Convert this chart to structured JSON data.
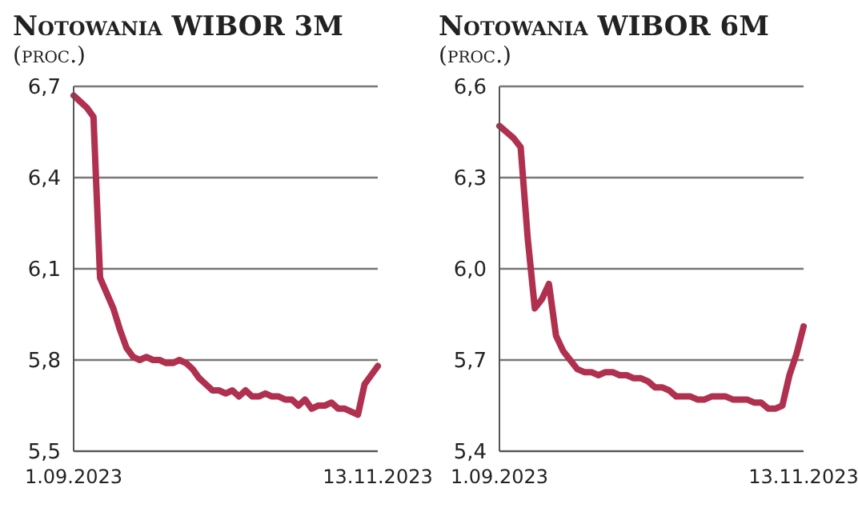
{
  "chart_data": [
    {
      "type": "line",
      "title": "Notowania WIBOR 3M",
      "subtitle": "(proc.)",
      "categories": [
        "1.09.2023",
        null,
        null,
        null,
        null,
        null,
        null,
        null,
        null,
        null,
        null,
        null,
        null,
        null,
        null,
        null,
        null,
        null,
        null,
        null,
        null,
        null,
        null,
        null,
        null,
        null,
        null,
        null,
        null,
        null,
        null,
        null,
        null,
        null,
        null,
        null,
        null,
        null,
        null,
        null,
        null,
        null,
        null,
        null,
        null,
        null,
        "13.11.2023"
      ],
      "series": [
        {
          "color": "#b0304f",
          "values": [
            6.67,
            6.65,
            6.63,
            6.6,
            6.07,
            6.02,
            5.97,
            5.9,
            5.84,
            5.81,
            5.8,
            5.81,
            5.8,
            5.8,
            5.79,
            5.79,
            5.8,
            5.79,
            5.77,
            5.74,
            5.72,
            5.7,
            5.7,
            5.69,
            5.7,
            5.68,
            5.7,
            5.68,
            5.68,
            5.69,
            5.68,
            5.68,
            5.67,
            5.67,
            5.65,
            5.67,
            5.64,
            5.65,
            5.65,
            5.66,
            5.64,
            5.64,
            5.63,
            5.62,
            5.72,
            5.75,
            5.78
          ]
        }
      ],
      "ylim": [
        5.5,
        6.7
      ],
      "yticks": [
        {
          "value": 5.5,
          "label": "5,5"
        },
        {
          "value": 5.8,
          "label": "5,8"
        },
        {
          "value": 6.1,
          "label": "6,1"
        },
        {
          "value": 6.4,
          "label": "6,4"
        },
        {
          "value": 6.7,
          "label": "6,7"
        }
      ],
      "grid": "y",
      "marker": "none",
      "line_style": "solid",
      "legend": false
    },
    {
      "type": "line",
      "title": "Notowania WIBOR 6M",
      "subtitle": "(proc.)",
      "categories": [
        "1.09.2023",
        null,
        null,
        null,
        null,
        null,
        null,
        null,
        null,
        null,
        null,
        null,
        null,
        null,
        null,
        null,
        null,
        null,
        null,
        null,
        null,
        null,
        null,
        null,
        null,
        null,
        null,
        null,
        null,
        null,
        null,
        null,
        null,
        null,
        null,
        null,
        null,
        null,
        null,
        null,
        null,
        null,
        null,
        "13.11.2023"
      ],
      "series": [
        {
          "color": "#b0304f",
          "values": [
            6.47,
            6.45,
            6.43,
            6.4,
            6.1,
            5.87,
            5.9,
            5.95,
            5.78,
            5.73,
            5.7,
            5.67,
            5.66,
            5.66,
            5.65,
            5.66,
            5.66,
            5.65,
            5.65,
            5.64,
            5.64,
            5.63,
            5.61,
            5.61,
            5.6,
            5.58,
            5.58,
            5.58,
            5.57,
            5.57,
            5.58,
            5.58,
            5.58,
            5.57,
            5.57,
            5.57,
            5.56,
            5.56,
            5.54,
            5.54,
            5.55,
            5.65,
            5.72,
            5.81
          ]
        }
      ],
      "ylim": [
        5.4,
        6.6
      ],
      "yticks": [
        {
          "value": 5.4,
          "label": "5,4"
        },
        {
          "value": 5.7,
          "label": "5,7"
        },
        {
          "value": 6.0,
          "label": "6,0"
        },
        {
          "value": 6.3,
          "label": "6,3"
        },
        {
          "value": 6.6,
          "label": "6,6"
        }
      ],
      "grid": "y",
      "marker": "none",
      "line_style": "solid",
      "legend": false
    }
  ]
}
